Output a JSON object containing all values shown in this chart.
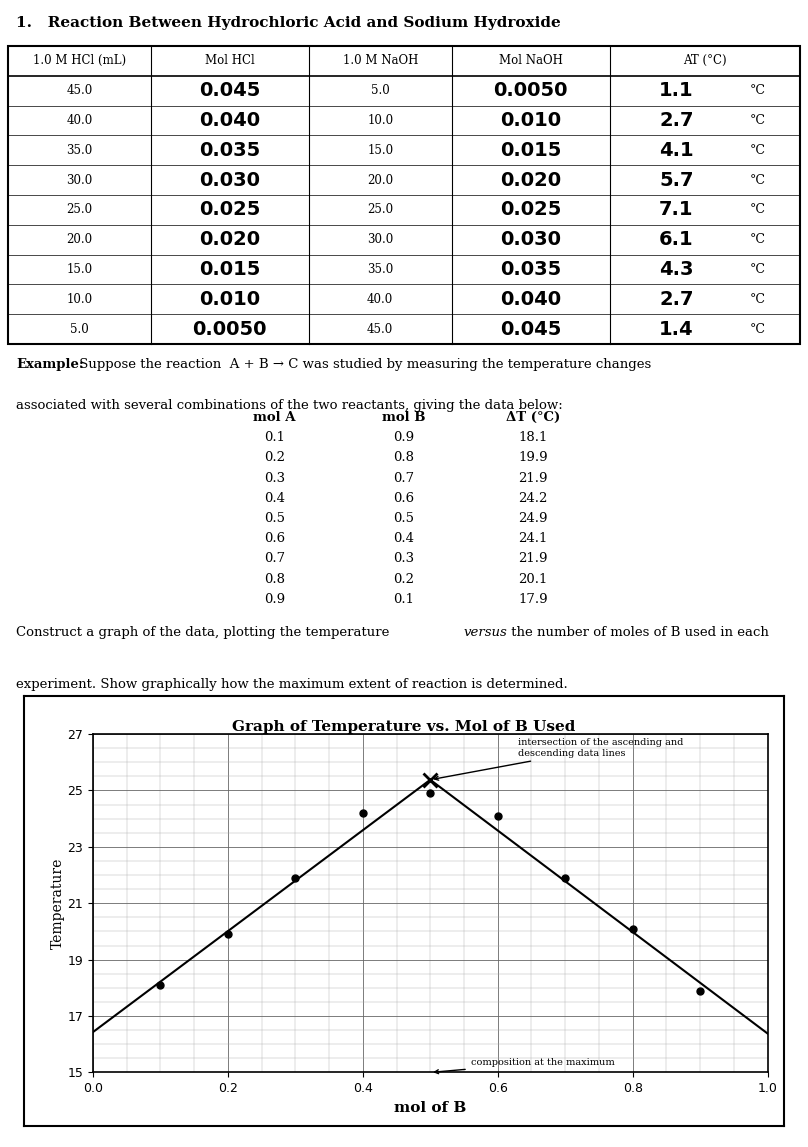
{
  "title": "1.   Reaction Between Hydrochloric Acid and Sodium Hydroxide",
  "table1_headers": [
    "1.0 M HCl (mL)",
    "Mol HCl",
    "1.0 M NaOH",
    "Mol NaOH",
    "AT (°C)"
  ],
  "table1_col1": [
    "45.0",
    "40.0",
    "35.0",
    "30.0",
    "25.0",
    "20.0",
    "15.0",
    "10.0",
    "5.0"
  ],
  "table1_col2": [
    "0.045",
    "0.040",
    "0.035",
    "0.030",
    "0.025",
    "0.020",
    "0.015",
    "0.010",
    "0.0050"
  ],
  "table1_col3": [
    "5.0",
    "10.0",
    "15.0",
    "20.0",
    "25.0",
    "30.0",
    "35.0",
    "40.0",
    "45.0"
  ],
  "table1_col4": [
    "0.0050",
    "0.010",
    "0.015",
    "0.020",
    "0.025",
    "0.030",
    "0.035",
    "0.040",
    "0.045"
  ],
  "table1_col5": [
    "1.1",
    "2.7",
    "4.1",
    "5.7",
    "7.1",
    "6.1",
    "4.3",
    "2.7",
    "1.4"
  ],
  "table1_col5_unit": "°C",
  "example_bold": "Example:",
  "example_rest": " Suppose the reaction  A + B → C was studied by measuring the temperature changes",
  "example_line2": "associated with several combinations of the two reactants, giving the data below:",
  "table2_headers": [
    "mol A",
    "mol B",
    "ΔT (°C)"
  ],
  "table2_data": [
    [
      "0.1",
      "0.9",
      "18.1"
    ],
    [
      "0.2",
      "0.8",
      "19.9"
    ],
    [
      "0.3",
      "0.7",
      "21.9"
    ],
    [
      "0.4",
      "0.6",
      "24.2"
    ],
    [
      "0.5",
      "0.5",
      "24.9"
    ],
    [
      "0.6",
      "0.4",
      "24.1"
    ],
    [
      "0.7",
      "0.3",
      "21.9"
    ],
    [
      "0.8",
      "0.2",
      "20.1"
    ],
    [
      "0.9",
      "0.1",
      "17.9"
    ]
  ],
  "construct_line1_pre": "Construct a graph of the data, plotting the temperature ",
  "construct_line1_italic": "versus",
  "construct_line1_post": " the number of moles of B used in each",
  "construct_line2": "experiment. Show graphically how the maximum extent of reaction is determined.",
  "graph_title": "Graph of Temperature vs. Mol of B Used",
  "graph_xlabel": "mol of B",
  "graph_ylabel": "Temperature",
  "graph_xlim": [
    0,
    1
  ],
  "graph_ylim": [
    15,
    27
  ],
  "graph_yticks": [
    15,
    17,
    19,
    21,
    23,
    25,
    27
  ],
  "graph_xticks": [
    0,
    0.2,
    0.4,
    0.6,
    0.8,
    1
  ],
  "mol_b": [
    0.1,
    0.2,
    0.3,
    0.4,
    0.5,
    0.6,
    0.7,
    0.8,
    0.9
  ],
  "temp": [
    18.1,
    19.9,
    21.9,
    24.2,
    24.9,
    24.1,
    21.9,
    20.1,
    17.9
  ],
  "annotation_intersection": "intersection of the ascending and\ndescending data lines",
  "annotation_composition": "composition at the maximum",
  "bg_color": "#ffffff"
}
